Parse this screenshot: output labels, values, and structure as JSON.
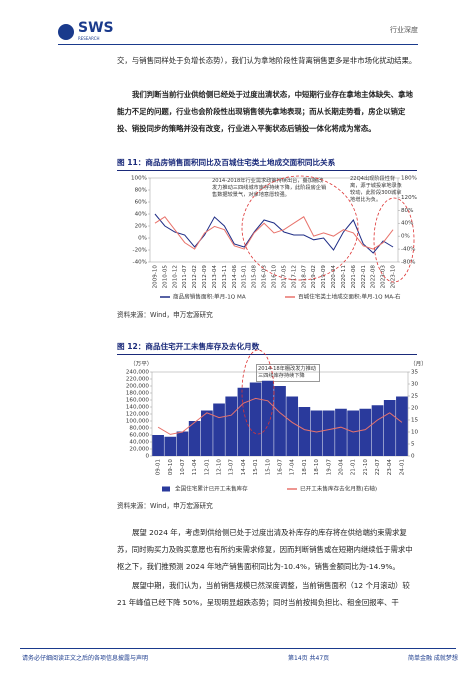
{
  "header": {
    "logo": "SWS",
    "logo_sub": "RESEARCH",
    "section": "行业深度"
  },
  "paragraphs": [
    "交，与销售同样处于负增长态势），我们认为拿地阶段性背离销售更多是非市场化扰动结果。",
    "我们判断当前行业供给侧已经处于过度出清状态，中短期行业存在拿地主体缺失、拿地能力不足的问题，行业也会阶段性出现销售领先拿地表现；而从长期走势看，房企以销定投、销投同步的策略并没有改变，行业进入平衡状态后销投一体化将成为常态。",
    "展望 2024 年，考虑到供给侧已处于过度出清及补库存的库存将在供给端约束需求复苏，同时购买力及购买意愿也有所约束需求修复，因而判断销售或在短期内继续低于需求中枢之下，我们推预测 2024 年地产销售面积同比为-10.4%，销售金额同比为-14.9%。",
    "展望中期，我们认为，当前销售规模已然深度调整，当前销售面积（12 个月滚动）较 21 年峰值已经下降 50%，呈现明显超跌态势；同时当前按揭负担比、租金回报率、干"
  ],
  "figures": [
    {
      "title": "图 11：商品房销售面积同比及百城住宅类土地成交面积同比关系",
      "source": "资料来源：Wind，申万宏源研究",
      "chart_data": {
        "type": "line",
        "annotations": [
          "2014-2018年行业需求政策持续出台，叠加棚改发力推动三四线城市库存持续下降，此阶段房企销售数据较景气，对拿地意愿较强。",
          "22Q4出现阶段性背离，源于城投拿地录象较动，此阶段300城拿地增比为负。"
        ],
        "categories": [
          "2009-10",
          "2010-05",
          "2010-12",
          "2011-07",
          "2012-02",
          "2012-09",
          "2013-04",
          "2013-11",
          "2014-06",
          "2015-01",
          "2015-08",
          "2016-03",
          "2016-10",
          "2017-05",
          "2017-12",
          "2018-07",
          "2019-02",
          "2019-09",
          "2020-04",
          "2020-11",
          "2021-06",
          "2022-01",
          "2022-08",
          "2023-03",
          "2023-10"
        ],
        "series": [
          {
            "name": "商品房销售面积:单月-1Q MA",
            "color": "#1f2d86",
            "axis": "y",
            "values": [
              40,
              20,
              10,
              5,
              -15,
              5,
              35,
              20,
              -10,
              -15,
              10,
              30,
              25,
              10,
              5,
              5,
              -3,
              0,
              -20,
              10,
              30,
              -10,
              -25,
              -5,
              -15
            ]
          },
          {
            "name": "百城住宅类土地成交面积:单月-1Q MA-右",
            "color": "#e8736c",
            "axis": "y2",
            "values": [
              40,
              60,
              20,
              -20,
              -40,
              10,
              30,
              20,
              -30,
              -40,
              10,
              40,
              10,
              20,
              40,
              60,
              0,
              10,
              0,
              20,
              10,
              -30,
              -40,
              -20,
              20
            ]
          }
        ],
        "ylim": [
          -40,
          100
        ],
        "yticks": [
          {
            "value": -40,
            "label": "-40%"
          },
          {
            "value": -20,
            "label": "-20%"
          },
          {
            "value": 0,
            "label": "0%"
          },
          {
            "value": 20,
            "label": "20%"
          },
          {
            "value": 40,
            "label": "40%"
          },
          {
            "value": 60,
            "label": "60%"
          },
          {
            "value": 80,
            "label": "80%"
          },
          {
            "value": 100,
            "label": "100%"
          }
        ],
        "y2lim": [
          -80,
          180
        ],
        "y2ticks": [
          {
            "value": -80,
            "label": "-80%"
          },
          {
            "value": -40,
            "label": "-40%"
          },
          {
            "value": 0,
            "label": "0%"
          },
          {
            "value": 40,
            "label": "40%"
          },
          {
            "value": 80,
            "label": "80%"
          },
          {
            "value": 120,
            "label": "120%"
          },
          {
            "value": 180,
            "label": "180%"
          }
        ]
      }
    },
    {
      "title": "图 12：商品住宅开工未售库存及去化月数",
      "source": "资料来源：Wind，申万宏源研究",
      "chart_data": {
        "type": "bar",
        "y_label": "（万平）",
        "y2_label": "（月）",
        "annotations": [
          "2014-18年棚改发力推动三四线库存持续下降"
        ],
        "categories": [
          "09-01",
          "09-10",
          "10-07",
          "11-04",
          "12-01",
          "12-10",
          "13-07",
          "14-04",
          "15-01",
          "15-10",
          "16-07",
          "17-04",
          "18-01",
          "18-10",
          "19-07",
          "20-04",
          "21-01",
          "21-10",
          "22-07",
          "23-04",
          "24-01"
        ],
        "series": [
          {
            "name": "全国住宅累计已开工未售库存",
            "color": "#2a3a9c",
            "type": "bar",
            "axis": "y",
            "values": [
              60000,
              55000,
              70000,
              100000,
              130000,
              150000,
              170000,
              195000,
              210000,
              215000,
              200000,
              170000,
              140000,
              130000,
              130000,
              135000,
              130000,
              135000,
              145000,
              160000,
              170000
            ]
          },
          {
            "name": "已开工未售库存去化月数(右轴)",
            "color": "#e8736c",
            "type": "line",
            "axis": "y2",
            "values": [
              12,
              9,
              10,
              14,
              18,
              16,
              17,
              22,
              24,
              23,
              18,
              14,
              11,
              10,
              11,
              12,
              10,
              11,
              15,
              18,
              14
            ]
          }
        ],
        "ylim": [
          0,
          240000
        ],
        "yticks": [
          0,
          {
            "value": 20000,
            "label": "20,000"
          },
          {
            "value": 40000,
            "label": "40,000"
          },
          {
            "value": 60000,
            "label": "60,000"
          },
          {
            "value": 80000,
            "label": "80,000"
          },
          {
            "value": 100000,
            "label": "100,000"
          },
          {
            "value": 120000,
            "label": "120,000"
          },
          {
            "value": 140000,
            "label": "140,000"
          },
          {
            "value": 160000,
            "label": "160,000"
          },
          {
            "value": 180000,
            "label": "180,000"
          },
          {
            "value": 200000,
            "label": "200,000"
          },
          {
            "value": 220000,
            "label": "220,000"
          },
          {
            "value": 240000,
            "label": "240,000"
          }
        ],
        "y2lim": [
          0,
          35
        ],
        "y2ticks": [
          0,
          5,
          10,
          15,
          20,
          25,
          30,
          35
        ]
      }
    }
  ],
  "footer": {
    "disclaimer": "请务必仔细阅读正文之后的各项信息披露与声明",
    "page": "第14页 共47页",
    "slogan": "简单金融 成就梦想"
  }
}
